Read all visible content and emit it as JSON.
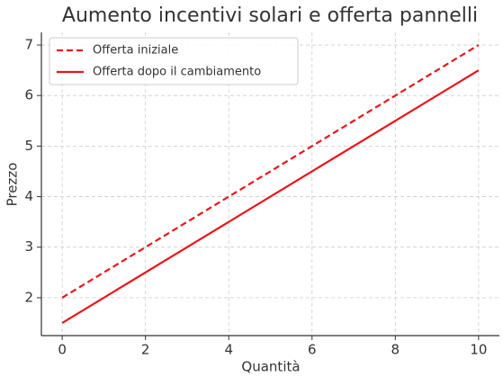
{
  "chart_data": {
    "type": "line",
    "title": "Aumento incentivi solari e offerta pannelli",
    "x_label": "Quantità",
    "y_label": "Prezzo",
    "x": [
      0,
      10
    ],
    "series": [
      {
        "name": "Offerta iniziale",
        "color": "#e8161b",
        "linestyle": "dashed",
        "values": [
          2,
          7
        ]
      },
      {
        "name": "Offerta dopo il cambiamento",
        "color": "#e8161b",
        "linestyle": "solid",
        "values": [
          1.5,
          6.5
        ]
      }
    ],
    "xlim": [
      -0.5,
      10.5
    ],
    "ylim": [
      1.25,
      7.25
    ],
    "xticks": [
      0,
      2,
      4,
      6,
      8,
      10
    ],
    "yticks": [
      2,
      3,
      4,
      5,
      6,
      7
    ],
    "grid": true,
    "legend": "upper left"
  }
}
